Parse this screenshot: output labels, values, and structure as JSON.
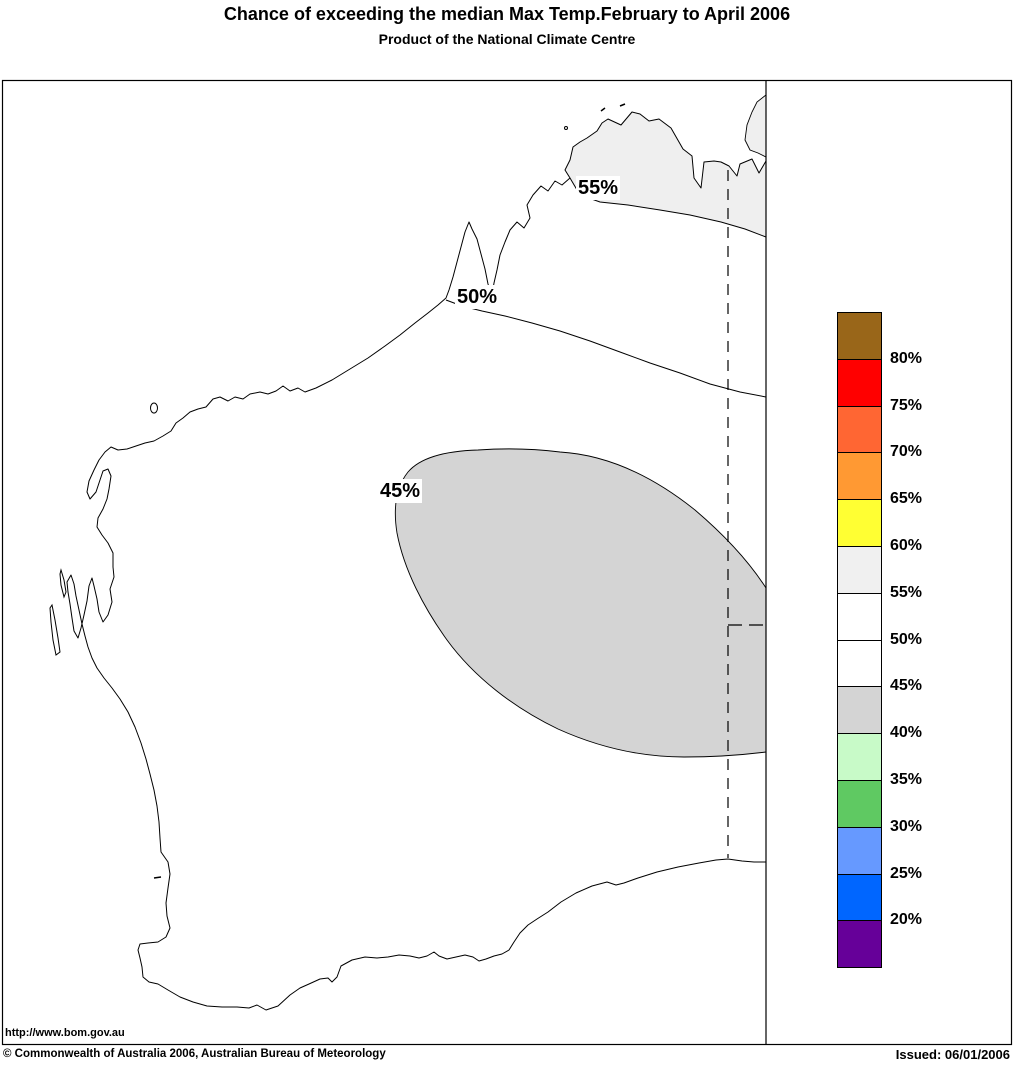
{
  "title": "Chance of exceeding the median Max Temp.February to April 2006",
  "subtitle": "Product of the National Climate Centre",
  "map": {
    "url_label": "http://www.bom.gov.au",
    "contour_labels": [
      {
        "value": "55%"
      },
      {
        "value": "50%"
      },
      {
        "value": "45%"
      }
    ],
    "shaded_regions": [
      {
        "range": "55-60%",
        "location": "far north Kimberley, above 55% contour"
      },
      {
        "range": "40-45%",
        "location": "central-eastern interior blob inside 45% contour"
      }
    ]
  },
  "legend": {
    "items": [
      {
        "color": "#996619",
        "label": "80%"
      },
      {
        "color": "#FF0000",
        "label": "75%"
      },
      {
        "color": "#FF6633",
        "label": "70%"
      },
      {
        "color": "#FF9933",
        "label": "65%"
      },
      {
        "color": "#FFFF33",
        "label": "60%"
      },
      {
        "color": "#F0F0F0",
        "label": "55%"
      },
      {
        "color": "#FFFFFF",
        "label": "50%"
      },
      {
        "color": "#FFFFFF",
        "label": "45%"
      },
      {
        "color": "#D4D4D4",
        "label": "40%"
      },
      {
        "color": "#C8FAC8",
        "label": "35%"
      },
      {
        "color": "#5FC962",
        "label": "30%"
      },
      {
        "color": "#6699FF",
        "label": "25%"
      },
      {
        "color": "#0066FF",
        "label": "20%"
      },
      {
        "color": "#660099",
        "label": ""
      }
    ]
  },
  "footer": {
    "copyright": "© Commonwealth of Australia 2006, Australian Bureau of Meteorology",
    "issued": "Issued: 06/01/2006"
  }
}
